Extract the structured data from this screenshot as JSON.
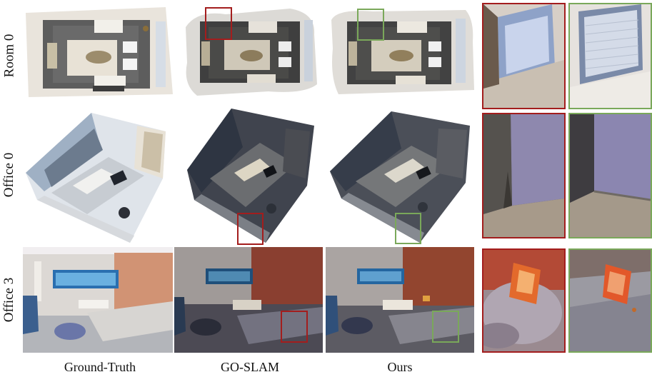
{
  "rows": [
    {
      "label": "Room 0"
    },
    {
      "label": "Office 0"
    },
    {
      "label": "Office 3"
    }
  ],
  "columns": [
    {
      "label": "Ground-Truth"
    },
    {
      "label": "GO-SLAM"
    },
    {
      "label": "Ours"
    }
  ],
  "colors": {
    "goslam_highlight": "#a31d1d",
    "ours_highlight": "#7aa85a"
  }
}
